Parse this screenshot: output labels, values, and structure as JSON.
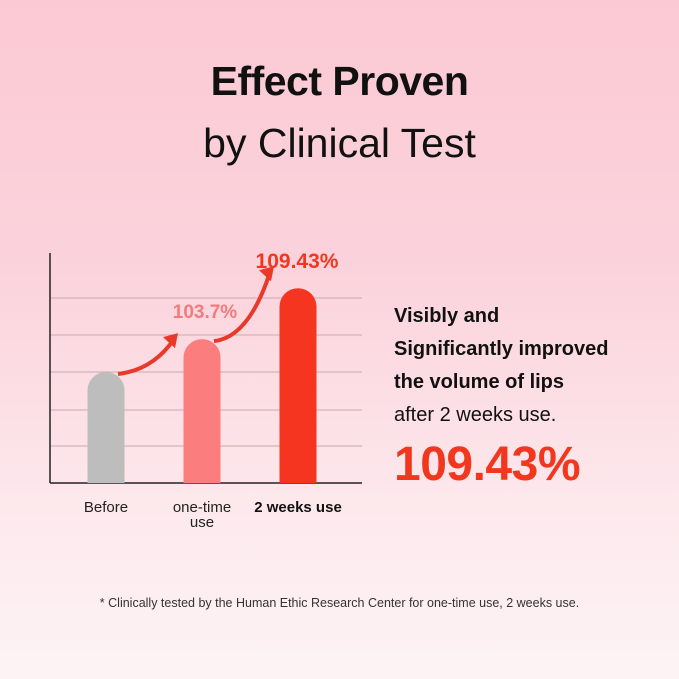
{
  "header": {
    "title": "Effect Proven",
    "subtitle": "by Clinical Test"
  },
  "chart_data": {
    "type": "bar",
    "categories": [
      "Before",
      "one-time use",
      "2 weeks use"
    ],
    "values": [
      100,
      103.7,
      109.43
    ],
    "data_labels": [
      "",
      "103.7%",
      "109.43%"
    ],
    "colors": [
      "#bdbdbd",
      "#fb7d7e",
      "#f5351f"
    ],
    "ylim": [
      87.5,
      113.4
    ],
    "grid": true,
    "annotations": "curved arrows between bars"
  },
  "side": {
    "line1": "Visibly and",
    "line2": "Significantly improved",
    "line3": "the volume of lips",
    "line4": "after 2 weeks use.",
    "big_value": "109.43%"
  },
  "footnote": "* Clinically tested by the Human Ethic Research Center for one-time use, 2 weeks use."
}
